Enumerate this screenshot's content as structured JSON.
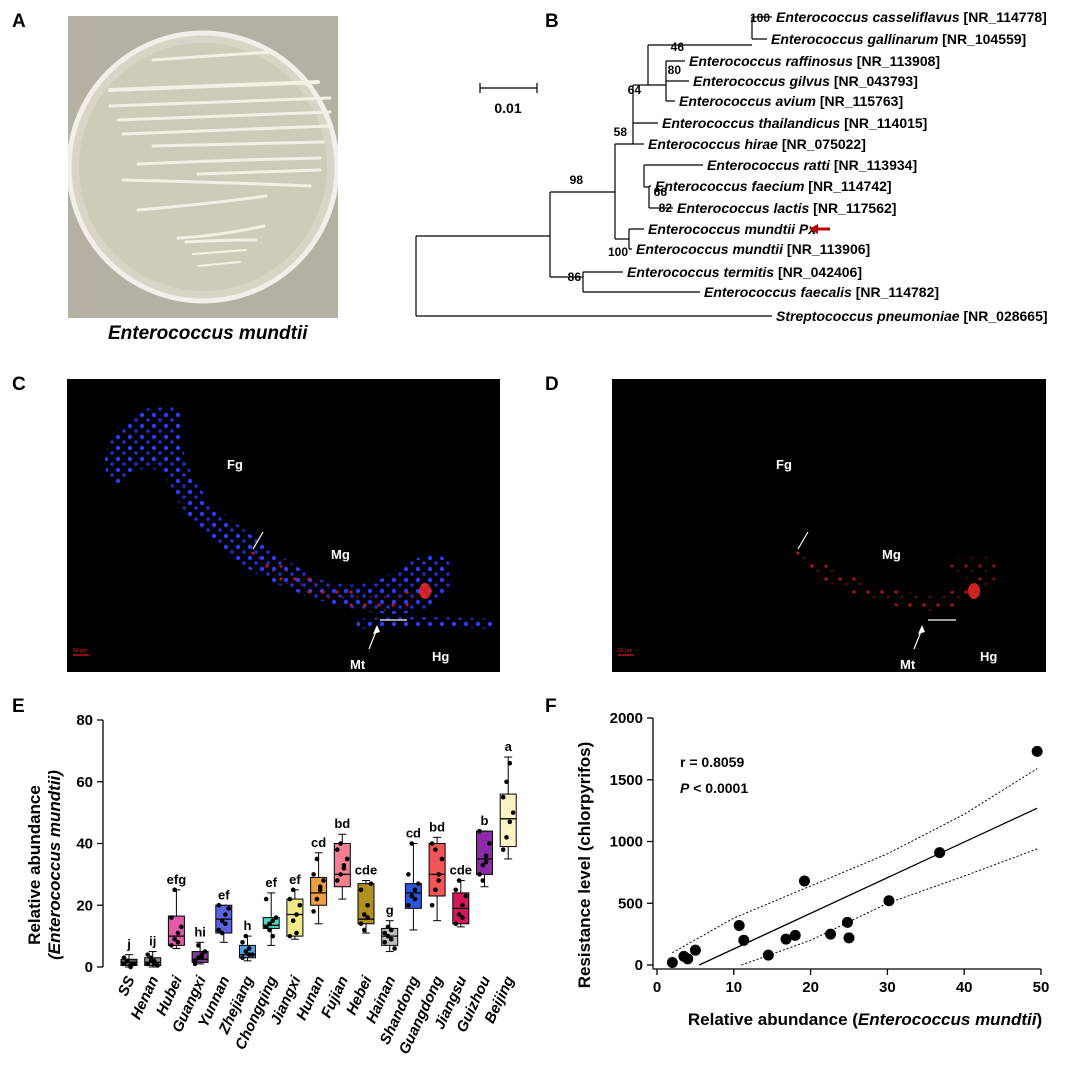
{
  "panels": {
    "a": "A",
    "b": "B",
    "c": "C",
    "d": "D",
    "e": "E",
    "f": "F"
  },
  "panel_a": {
    "caption": "Enterococcus mundtii"
  },
  "panel_b": {
    "scale_label": "0.01",
    "taxa": [
      {
        "genus_species": "Enterococcus casseliflavus",
        "accession": "[NR_114778]"
      },
      {
        "genus_species": "Enterococcus gallinarum",
        "accession": "[NR_104559]"
      },
      {
        "genus_species": "Enterococcus raffinosus",
        "accession": "[NR_113908]"
      },
      {
        "genus_species": "Enterococcus gilvus",
        "accession": "[NR_043793]"
      },
      {
        "genus_species": "Enterococcus avium",
        "accession": "[NR_115763]"
      },
      {
        "genus_species": "Enterococcus thailandicus",
        "accession": "[NR_114015]"
      },
      {
        "genus_species": "Enterococcus hirae",
        "accession": "[NR_075022]"
      },
      {
        "genus_species": "Enterococcus ratti",
        "accession": "[NR_113934]"
      },
      {
        "genus_species": "Enterococcus faecium",
        "accession": "[NR_114742]"
      },
      {
        "genus_species": "Enterococcus lactis",
        "accession": "[NR_117562]"
      },
      {
        "genus_species": "Enterococcus mundtii Px",
        "accession": ""
      },
      {
        "genus_species": "Enterococcus mundtii",
        "accession": "[NR_113906]"
      },
      {
        "genus_species": "Enterococcus termitis",
        "accession": "[NR_042406]"
      },
      {
        "genus_species": "Enterococcus faecalis",
        "accession": "[NR_114782]"
      },
      {
        "genus_species": "Streptococcus pneumoniae",
        "accession": "[NR_028665]"
      }
    ],
    "bootstrap": [
      "100",
      "46",
      "80",
      "64",
      "58",
      "98",
      "66",
      "82",
      "100",
      "86"
    ],
    "arrow_color": "#c00000"
  },
  "panel_c": {
    "labels": {
      "fg": "Fg",
      "mg": "Mg",
      "mt": "Mt",
      "hg": "Hg"
    },
    "scale_text": "50 μm"
  },
  "panel_d": {
    "labels": {
      "fg": "Fg",
      "mg": "Mg",
      "mt": "Mt",
      "hg": "Hg"
    },
    "scale_text": "50 μm"
  },
  "chart_data": [
    {
      "type": "box",
      "ylabel_line1": "Relative abundance",
      "ylabel_line2": "(Enterococcus mundtii)",
      "ylim": [
        0,
        80
      ],
      "yticks": [
        0,
        20,
        40,
        60,
        80
      ],
      "categories": [
        "SS",
        "Henan",
        "Hubei",
        "Guangxi",
        "Yunnan",
        "Zhejiang",
        "Chongqing",
        "Jiangxi",
        "Hunan",
        "Fujian",
        "Hebei",
        "Hainan",
        "Shandong",
        "Guangdong",
        "Jiangsu",
        "Guizhou",
        "Beijing"
      ],
      "colors": [
        "#5b5b5b",
        "#8a8a8a",
        "#e05aa8",
        "#7a3e96",
        "#5a62e0",
        "#4ea0e0",
        "#4ed6c2",
        "#f2ea86",
        "#ef9d3e",
        "#f57f91",
        "#b0901e",
        "#bcbcbc",
        "#2f55d6",
        "#f25555",
        "#d3175c",
        "#8c2aa8",
        "#fbf3c3"
      ],
      "boxes": [
        {
          "min": 0,
          "q1": 0.5,
          "median": 1.5,
          "q3": 2.5,
          "max": 4
        },
        {
          "min": 0,
          "q1": 0.5,
          "median": 1.5,
          "q3": 3,
          "max": 5
        },
        {
          "min": 6,
          "q1": 7,
          "median": 10,
          "q3": 16.5,
          "max": 25
        },
        {
          "min": 1,
          "q1": 1.5,
          "median": 2.5,
          "q3": 5,
          "max": 8
        },
        {
          "min": 8,
          "q1": 11,
          "median": 15.5,
          "q3": 20,
          "max": 20
        },
        {
          "min": 2,
          "q1": 3,
          "median": 4,
          "q3": 7,
          "max": 10
        },
        {
          "min": 7,
          "q1": 12.5,
          "median": 13.5,
          "q3": 16,
          "max": 24
        },
        {
          "min": 9,
          "q1": 10,
          "median": 17,
          "q3": 22,
          "max": 25
        },
        {
          "min": 14,
          "q1": 20,
          "median": 24,
          "q3": 29,
          "max": 37
        },
        {
          "min": 22,
          "q1": 26,
          "median": 30,
          "q3": 40,
          "max": 43
        },
        {
          "min": 11,
          "q1": 14,
          "median": 15.5,
          "q3": 27,
          "max": 28
        },
        {
          "min": 5,
          "q1": 7,
          "median": 10,
          "q3": 12.5,
          "max": 15
        },
        {
          "min": 12,
          "q1": 19,
          "median": 24,
          "q3": 27,
          "max": 40
        },
        {
          "min": 15,
          "q1": 23,
          "median": 30,
          "q3": 40,
          "max": 42
        },
        {
          "min": 13,
          "q1": 14,
          "median": 19,
          "q3": 24,
          "max": 28
        },
        {
          "min": 26,
          "q1": 30,
          "median": 35,
          "q3": 44,
          "max": 44
        },
        {
          "min": 35,
          "q1": 39,
          "median": 48,
          "q3": 56,
          "max": 68
        }
      ],
      "points": [
        [
          1,
          2,
          0.5,
          1,
          3,
          2,
          0
        ],
        [
          1,
          3,
          2,
          0.5,
          4,
          2,
          1
        ],
        [
          7,
          9,
          11,
          13,
          16,
          25,
          8
        ],
        [
          2,
          3,
          4,
          5,
          1,
          7,
          3
        ],
        [
          12,
          15,
          17,
          19,
          20,
          11,
          14
        ],
        [
          3,
          5,
          6,
          4,
          8,
          10,
          4
        ],
        [
          13,
          14,
          15,
          16,
          22,
          12,
          10
        ],
        [
          10,
          15,
          17,
          20,
          22,
          25,
          11
        ],
        [
          18,
          22,
          26,
          28,
          30,
          35,
          25
        ],
        [
          28,
          30,
          32,
          35,
          38,
          40,
          33
        ],
        [
          14,
          17,
          20,
          27,
          25,
          12,
          16
        ],
        [
          8,
          10,
          12,
          6,
          11,
          13,
          9
        ],
        [
          20,
          23,
          25,
          27,
          30,
          40,
          22
        ],
        [
          20,
          25,
          30,
          35,
          40,
          38,
          28
        ],
        [
          14,
          17,
          20,
          23,
          25,
          28,
          16
        ],
        [
          30,
          33,
          36,
          40,
          44,
          28,
          34
        ],
        [
          38,
          42,
          47,
          50,
          55,
          60,
          66
        ]
      ],
      "sig_letters": [
        "j",
        "ij",
        "efg",
        "hi",
        "ef",
        "h",
        "ef",
        "ef",
        "cd",
        "bd",
        "cde",
        "g",
        "cd",
        "bd",
        "cde",
        "b",
        "a"
      ]
    },
    {
      "type": "scatter",
      "xlabel_prefix": "Relative abundance (",
      "xlabel_italic": "Enterococcus mundtii",
      "xlabel_suffix": ")",
      "ylabel": "Resistance level (chlorpyrifos)",
      "xlim": [
        0,
        50
      ],
      "ylim": [
        0,
        2000
      ],
      "xticks": [
        0,
        10,
        20,
        30,
        40,
        50
      ],
      "yticks": [
        0,
        500,
        1000,
        1500,
        2000
      ],
      "annotation_r": "r = 0.8059",
      "annotation_p_italic": "P",
      "annotation_p_rest": " < 0.0001",
      "points": [
        {
          "x": 2,
          "y": 20
        },
        {
          "x": 3.5,
          "y": 70
        },
        {
          "x": 4,
          "y": 50
        },
        {
          "x": 5,
          "y": 120
        },
        {
          "x": 10.7,
          "y": 320
        },
        {
          "x": 11.3,
          "y": 200
        },
        {
          "x": 14.5,
          "y": 80
        },
        {
          "x": 16.8,
          "y": 210
        },
        {
          "x": 18,
          "y": 240
        },
        {
          "x": 19.2,
          "y": 680
        },
        {
          "x": 22.6,
          "y": 250
        },
        {
          "x": 24.8,
          "y": 345
        },
        {
          "x": 25,
          "y": 220
        },
        {
          "x": 30.2,
          "y": 520
        },
        {
          "x": 36.8,
          "y": 910
        },
        {
          "x": 49.5,
          "y": 1730
        }
      ],
      "regression": {
        "x": [
          5.5,
          49.5
        ],
        "y": [
          0,
          1270
        ]
      },
      "ci_upper": {
        "x": [
          2,
          10,
          20,
          30,
          40,
          49.5
        ],
        "y": [
          100,
          380,
          640,
          900,
          1220,
          1590
        ]
      },
      "ci_lower": {
        "x": [
          11,
          20,
          30,
          40,
          49.5
        ],
        "y": [
          0,
          200,
          500,
          720,
          940
        ]
      }
    }
  ]
}
